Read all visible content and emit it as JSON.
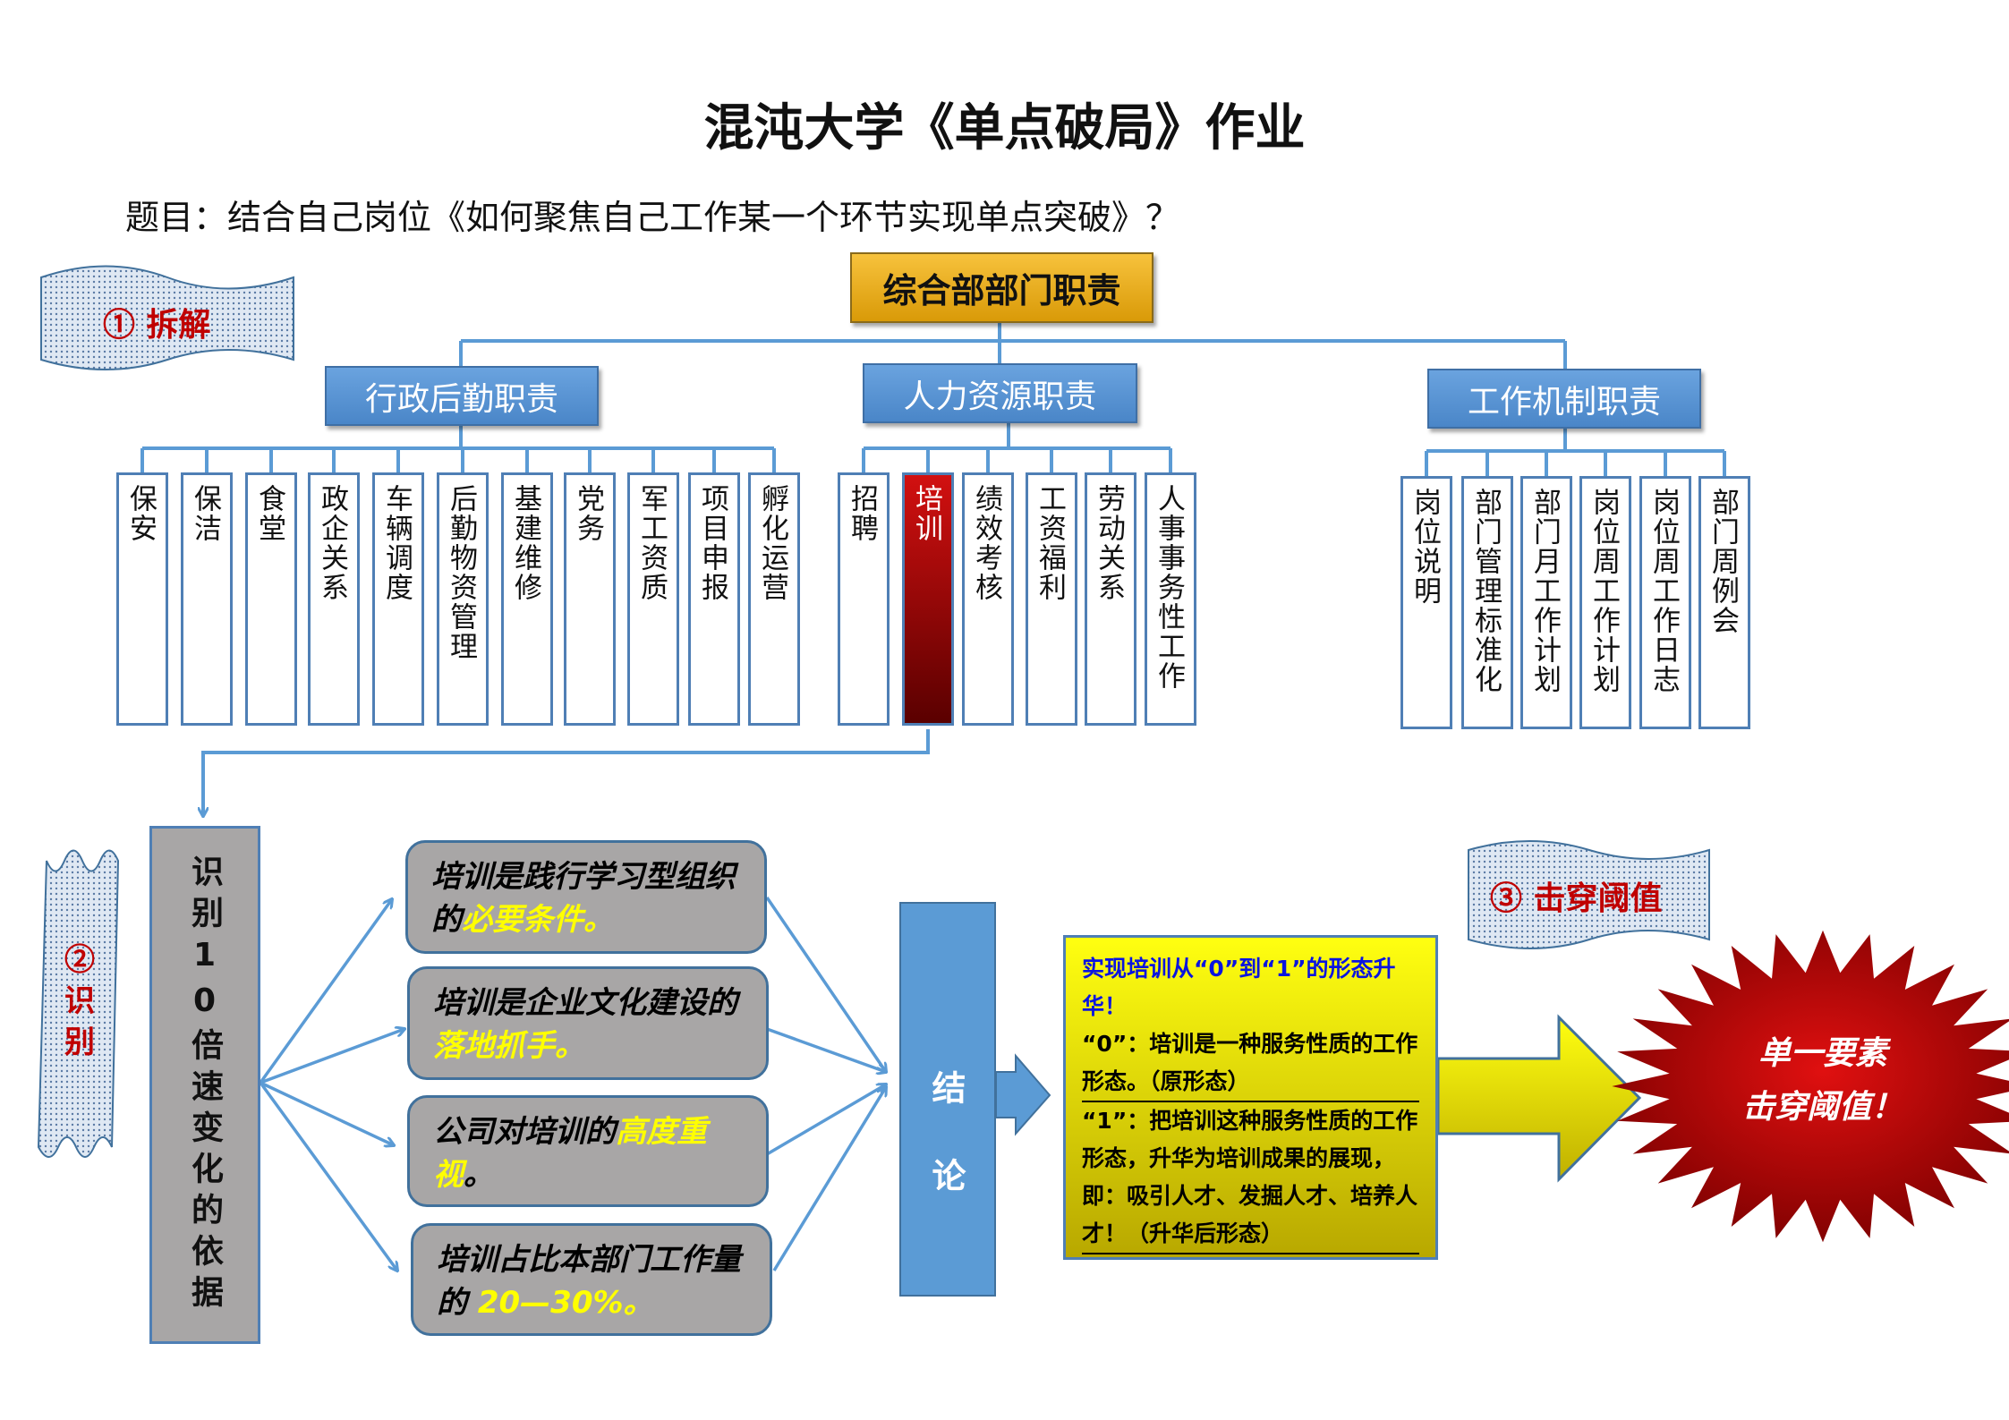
{
  "title": "混沌大学《单点破局》作业",
  "subtitle": "题目：结合自己岗位《如何聚焦自己工作某一个环节实现单点突破》？",
  "banners": {
    "step1": "① 拆解",
    "step2": "②识别",
    "step3": "③ 击穿阈值"
  },
  "org": {
    "root": "综合部部门职责",
    "branches": [
      {
        "label": "行政后勤职责",
        "items": [
          "保安",
          "保洁",
          "食堂",
          "政企关系",
          "车辆调度",
          "后勤物资管理",
          "基建维修",
          "党务",
          "军工资质",
          "项目申报",
          "孵化运营"
        ]
      },
      {
        "label": "人力资源职责",
        "items": [
          "招聘",
          "培训",
          "绩效考核",
          "工资福利",
          "劳动关系",
          "人事事务性工作"
        ],
        "highlighted": "培训"
      },
      {
        "label": "工作机制职责",
        "items": [
          "岗位说明",
          "部门管理标准化",
          "部门月工作计划",
          "岗位周工作计划",
          "岗位周工作日志",
          "部门周例会"
        ]
      }
    ]
  },
  "identify": {
    "label": "识别10倍速变化的依据",
    "reasons": [
      {
        "text": "培训是践行学习型组织的",
        "highlight": "必要条件。"
      },
      {
        "text": "培训是企业文化建设的",
        "highlight": "落地抓手。"
      },
      {
        "text": "公司对培训的",
        "highlight": "高度重视",
        "tail": "。"
      },
      {
        "text": "培训占比本部门工作量的 ",
        "highlight": "20—30%。"
      }
    ]
  },
  "conclusion": {
    "label": "结论",
    "heading": "实现培训从“0”到“1”的形态升华！",
    "line0": "“0”：培训是一种服务性质的工作形态。（原形态）",
    "line1": "“1”：把培训这种服务性质的工作形态，升华为培训成果的展现，即：吸引人才、发掘人才、培养人才！（升华后形态）"
  },
  "result": {
    "line1": "单一要素",
    "line2": "击穿阈值！"
  },
  "colors": {
    "accent_blue": "#5b9bd5",
    "highlight_red": "#c00000",
    "yellow": "#ffff00",
    "gold": "#e8ac1c"
  }
}
